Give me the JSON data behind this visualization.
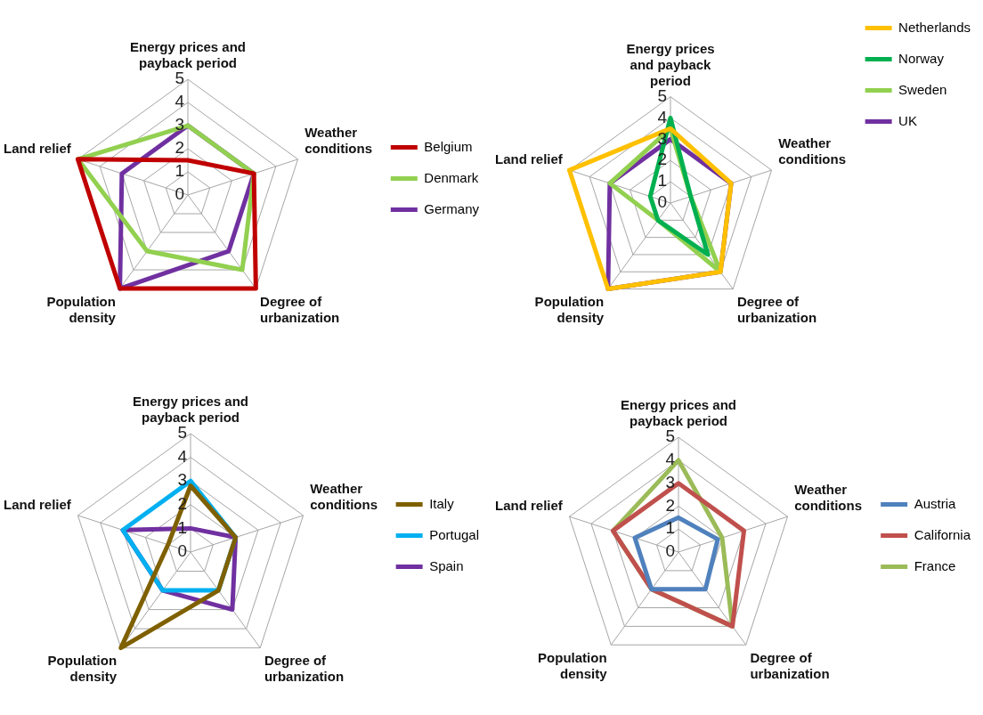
{
  "chart_data": [
    {
      "type": "radar",
      "categories": [
        "Energy prices and payback period",
        "Weather conditions",
        "Degree of urbanization",
        "Population density",
        "Land relief"
      ],
      "ylim": [
        0,
        5
      ],
      "yticks": [
        0,
        1,
        2,
        3,
        4,
        5
      ],
      "grid": true,
      "legend": "right",
      "marker": "none",
      "line_style": "solid",
      "series": [
        {
          "name": "Belgium",
          "color": "#c00000",
          "values": [
            1.5,
            3,
            5,
            5,
            5
          ]
        },
        {
          "name": "Denmark",
          "color": "#92d050",
          "values": [
            3,
            3,
            4,
            3,
            5
          ]
        },
        {
          "name": "Germany",
          "color": "#7030a0",
          "values": [
            3,
            3,
            3,
            5,
            3
          ]
        }
      ]
    },
    {
      "type": "radar",
      "categories": [
        "Energy prices and payback period",
        "Weather conditions",
        "Degree of urbanization",
        "Population density",
        "Land relief"
      ],
      "ylim": [
        0,
        5
      ],
      "yticks": [
        0,
        1,
        2,
        3,
        4,
        5
      ],
      "grid": true,
      "legend": "top right",
      "marker": "none",
      "line_style": "solid",
      "series": [
        {
          "name": "Netherlands",
          "color": "#ffc000",
          "values": [
            3.5,
            3,
            4,
            5,
            5
          ]
        },
        {
          "name": "Norway",
          "color": "#00b050",
          "values": [
            4,
            1,
            3,
            1,
            1
          ]
        },
        {
          "name": "Sweden",
          "color": "#92d050",
          "values": [
            3.5,
            1,
            4,
            1,
            3
          ]
        },
        {
          "name": "UK",
          "color": "#7030a0",
          "values": [
            3,
            3,
            4,
            5,
            3
          ]
        }
      ]
    },
    {
      "type": "radar",
      "categories": [
        "Energy prices and payback period",
        "Weather conditions",
        "Degree of urbanization",
        "Population density",
        "Land relief"
      ],
      "ylim": [
        0,
        5
      ],
      "yticks": [
        0,
        1,
        2,
        3,
        4,
        5
      ],
      "grid": true,
      "legend": "right",
      "marker": "none",
      "line_style": "solid",
      "series": [
        {
          "name": "Italy",
          "color": "#7f6000",
          "values": [
            2.8,
            2,
            2,
            5,
            1
          ]
        },
        {
          "name": "Portugal",
          "color": "#00b0f0",
          "values": [
            3,
            2,
            2,
            2,
            3
          ]
        },
        {
          "name": "Spain",
          "color": "#7030a0",
          "values": [
            1,
            2,
            3,
            2,
            3
          ]
        }
      ]
    },
    {
      "type": "radar",
      "categories": [
        "Energy prices and payback period",
        "Weather conditions",
        "Degree of urbanization",
        "Population density",
        "Land relief"
      ],
      "ylim": [
        0,
        5
      ],
      "yticks": [
        0,
        1,
        2,
        3,
        4,
        5
      ],
      "grid": true,
      "legend": "right",
      "marker": "none",
      "line_style": "solid",
      "series": [
        {
          "name": "Austria",
          "color": "#4f81bd",
          "values": [
            1.5,
            1.8,
            2,
            2,
            2
          ]
        },
        {
          "name": "California",
          "color": "#c0504d",
          "values": [
            3,
            3,
            4,
            2,
            3
          ]
        },
        {
          "name": "France",
          "color": "#9bbb59",
          "values": [
            4,
            2,
            4,
            2,
            3
          ]
        }
      ]
    }
  ]
}
